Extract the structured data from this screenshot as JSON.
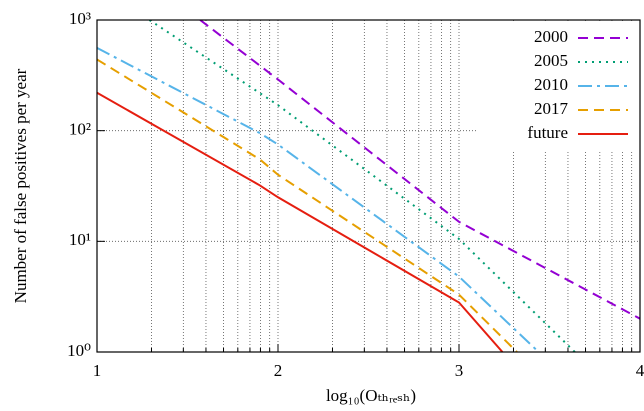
{
  "chart_data": {
    "type": "line",
    "xlabel": "log₁₀(Oₜₕᵣₑₛₕ)",
    "ylabel": "Number of false positives per year",
    "xlim": [
      1,
      4
    ],
    "xticks": [
      1,
      2,
      3,
      4
    ],
    "xminorticks": [
      1.301,
      1.477,
      1.602,
      1.699,
      1.778,
      1.845,
      1.903,
      1.954,
      2.301,
      2.477,
      2.602,
      2.699,
      2.778,
      2.845,
      2.903,
      2.954,
      3.301,
      3.477,
      3.602,
      3.699,
      3.778,
      3.845,
      3.903,
      3.954
    ],
    "ylim": [
      1,
      1000
    ],
    "ylog": true,
    "yticks": [
      {
        "value": 1,
        "label": "10⁰"
      },
      {
        "value": 10,
        "label": "10¹"
      },
      {
        "value": 100,
        "label": "10²"
      },
      {
        "value": 1000,
        "label": "10³"
      }
    ],
    "grid": true,
    "legend": "upper right",
    "series": [
      {
        "name": "2000",
        "color": "#9400d3",
        "style": "dashed",
        "x": [
          1.57,
          2,
          3,
          4
        ],
        "values": [
          1000,
          290,
          15,
          2
        ]
      },
      {
        "name": "2005",
        "color": "#009e73",
        "style": "dotted",
        "x": [
          1.29,
          2,
          3,
          3.64
        ],
        "values": [
          1000,
          170,
          10.5,
          1
        ]
      },
      {
        "name": "2010",
        "color": "#56b4e9",
        "style": "dashdot",
        "x": [
          1,
          1.9,
          2,
          3,
          3.44
        ],
        "values": [
          560,
          95,
          75,
          4.8,
          1
        ]
      },
      {
        "name": "2017",
        "color": "#e69f00",
        "style": "dashed",
        "x": [
          1,
          1.9,
          2,
          3,
          3.32
        ],
        "values": [
          440,
          55,
          40,
          3.3,
          1
        ]
      },
      {
        "name": "future",
        "color": "#e51e10",
        "style": "solid",
        "x": [
          1,
          1.9,
          2,
          3,
          3.24
        ],
        "values": [
          220,
          32,
          25,
          2.8,
          1
        ]
      }
    ]
  }
}
